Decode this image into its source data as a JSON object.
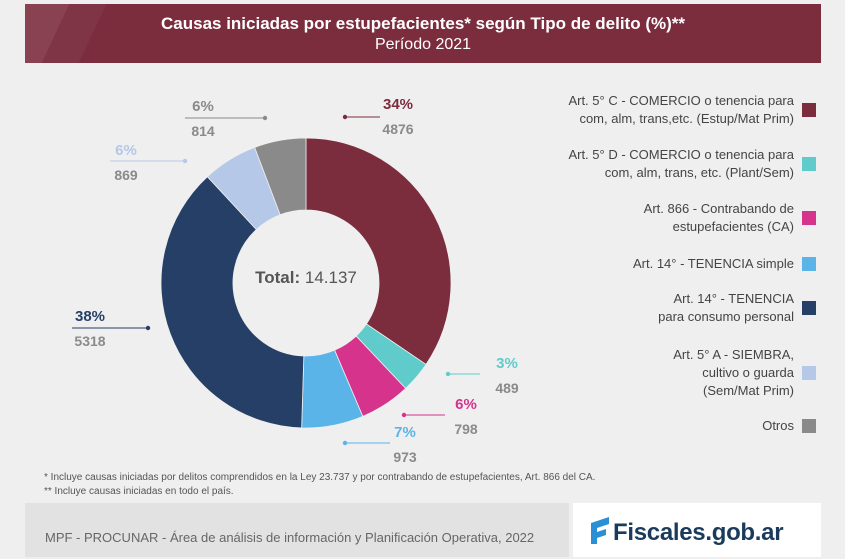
{
  "header": {
    "title": "Causas iniciadas por estupefacientes* según Tipo de delito (%)**",
    "subtitle": "Período 2021"
  },
  "chart_data": {
    "type": "pie",
    "title": "Causas iniciadas por estupefacientes* según Tipo de delito (%)**",
    "subtitle": "Período 2021",
    "center_label": "Total:",
    "center_value": "14.137",
    "legend_placement": "right",
    "slices": [
      {
        "name": "Art. 5° C - COMERCIO o tenencia para\ncom, alm, trans,etc. (Estup/Mat Prim)",
        "value": 4876,
        "pct_label": "34%",
        "count_label": "4876",
        "color": "#7b2d3e"
      },
      {
        "name": "Art. 5° D - COMERCIO o tenencia para\ncom, alm, trans, etc. (Plant/Sem)",
        "value": 489,
        "pct_label": "3%",
        "count_label": "489",
        "color": "#5fcbcb"
      },
      {
        "name": "Art. 866 - Contrabando de\nestupefacientes (CA)",
        "value": 798,
        "pct_label": "6%",
        "count_label": "798",
        "color": "#d6338c"
      },
      {
        "name": "Art. 14° - TENENCIA simple",
        "value": 973,
        "pct_label": "7%",
        "count_label": "973",
        "color": "#5ab4e8"
      },
      {
        "name": "Art. 14° - TENENCIA\npara consumo personal",
        "value": 5318,
        "pct_label": "38%",
        "count_label": "5318",
        "color": "#263f66"
      },
      {
        "name": "Art. 5° A - SIEMBRA,\ncultivo o guarda\n(Sem/Mat Prim)",
        "value": 869,
        "pct_label": "6%",
        "count_label": "869",
        "color": "#b5c8e8"
      },
      {
        "name": "Otros",
        "value": 814,
        "pct_label": "6%",
        "count_label": "814",
        "color": "#8a8a8a"
      }
    ]
  },
  "notes": [
    "* Incluye causas iniciadas por delitos comprendidos en la Ley 23.737 y por contrabando de estupefacientes, Art. 866 del CA.",
    "** Incluye causas iniciadas en todo el país."
  ],
  "footer": {
    "source": "MPF - PROCUNAR - Área de análisis de información y Planificación Operativa, 2022",
    "logo_text": "Fiscales.gob.ar",
    "logo_color": "#1b3b5c",
    "logo_mark_color": "#2a8fd4"
  },
  "colors": {
    "header_bg": "#7b2d3e",
    "background": "#efefef"
  }
}
